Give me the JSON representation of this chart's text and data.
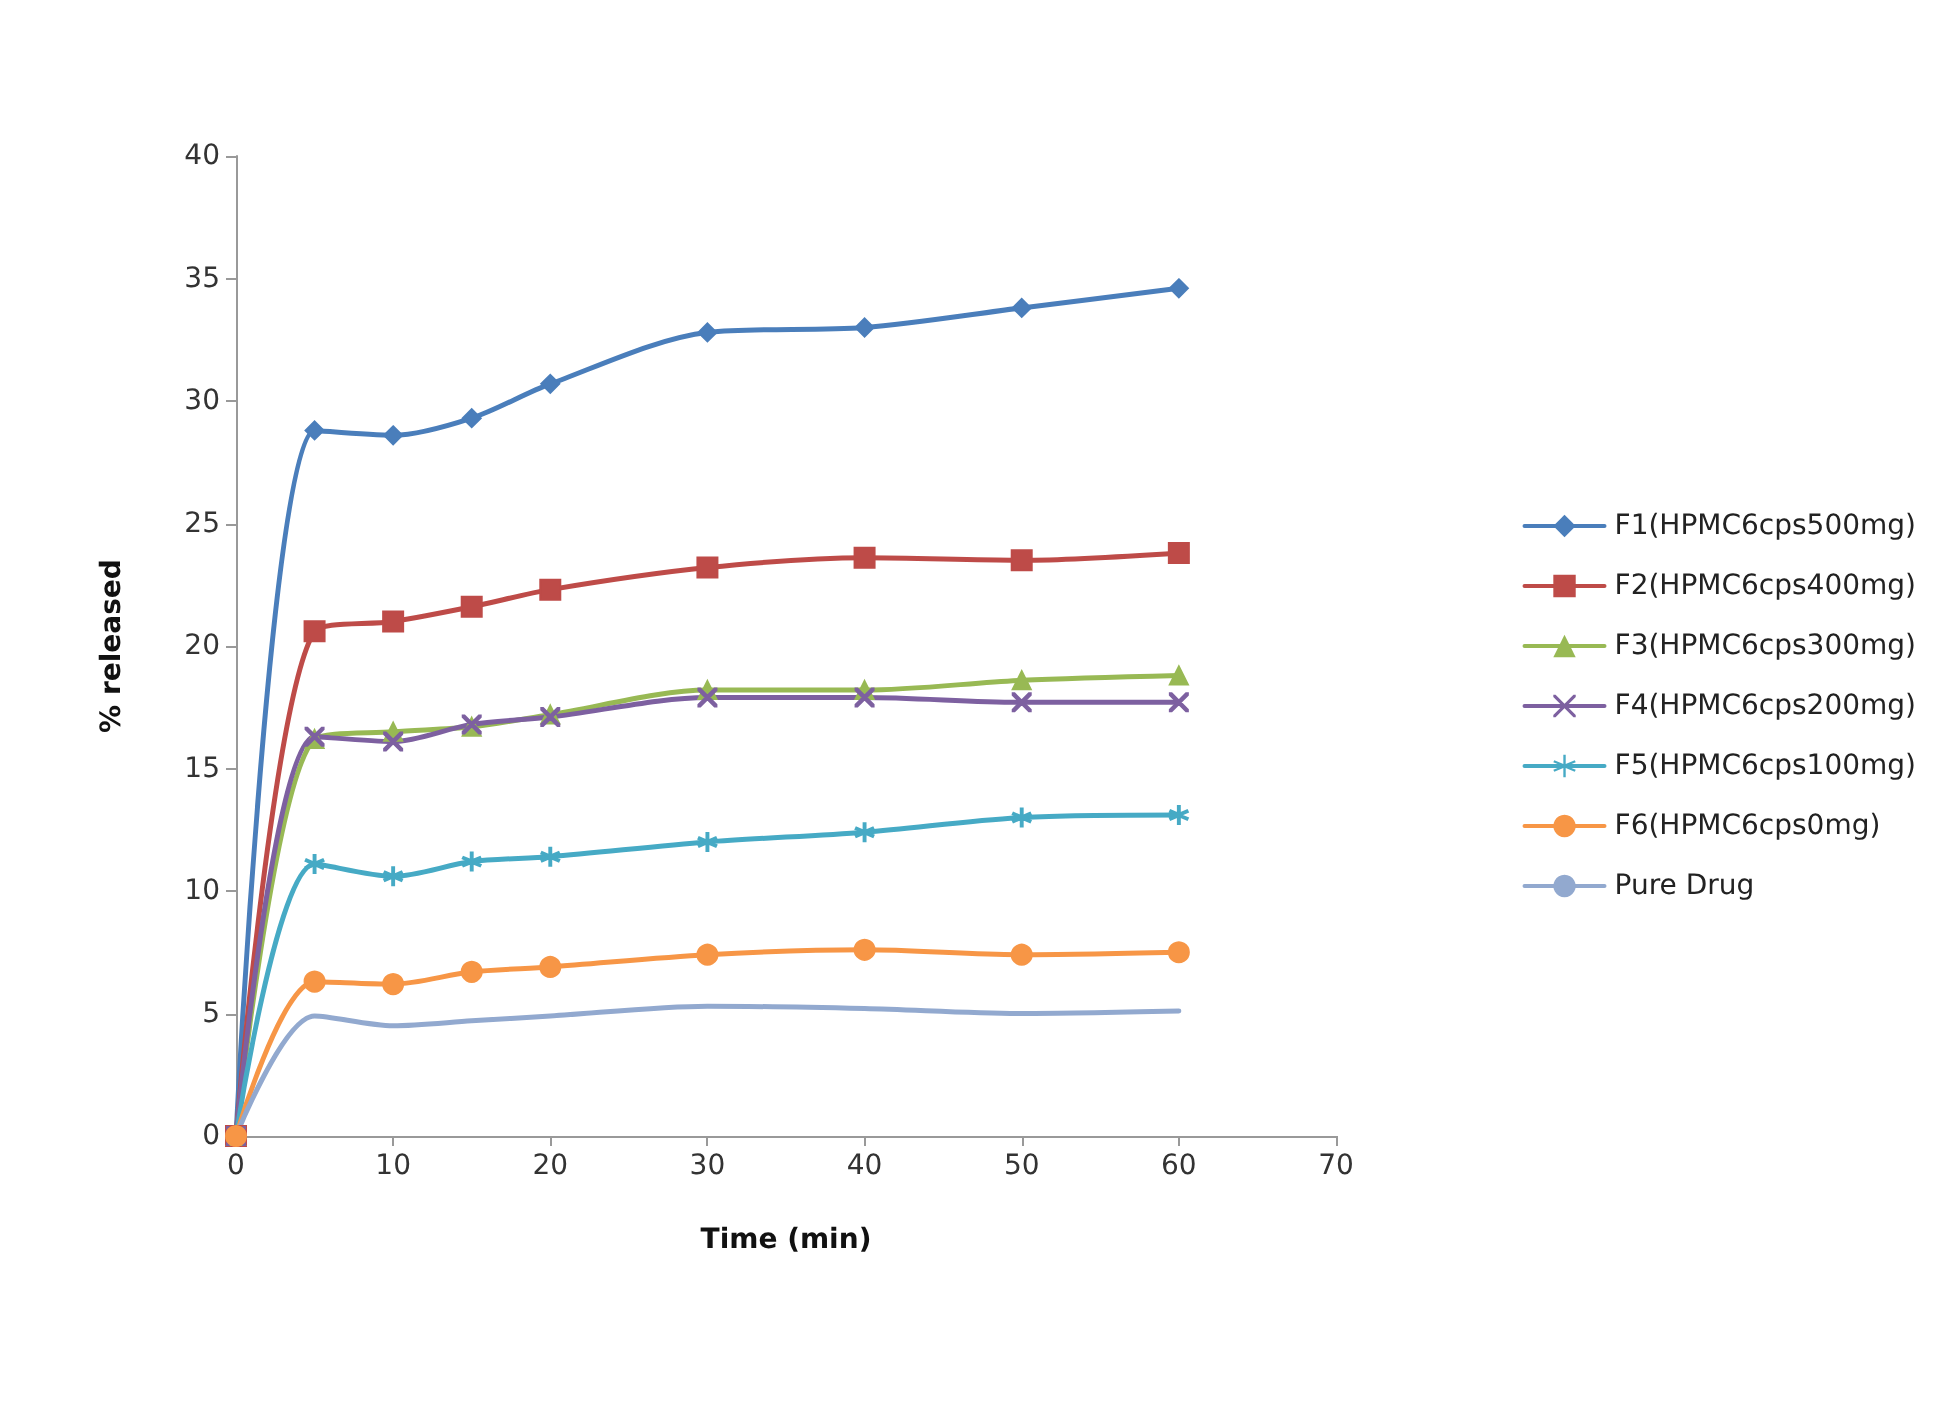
{
  "chart_data": {
    "type": "line",
    "xlabel": "Time (min)",
    "ylabel": "% released",
    "x": [
      0,
      5,
      10,
      15,
      20,
      30,
      40,
      50,
      60
    ],
    "xlim": [
      0,
      70
    ],
    "xticks": [
      0,
      10,
      20,
      30,
      40,
      50,
      60,
      70
    ],
    "ylim": [
      0,
      40
    ],
    "yticks": [
      0,
      5,
      10,
      15,
      20,
      25,
      30,
      35,
      40
    ],
    "grid": false,
    "legend": "right",
    "line_style": "solid",
    "series": [
      {
        "name": "F1(HPMC6cps500mg)",
        "color": "#4a7ebb",
        "marker": "diamond",
        "values": [
          0,
          28.8,
          28.6,
          29.3,
          30.7,
          32.8,
          33.0,
          33.8,
          34.6
        ]
      },
      {
        "name": "F2(HPMC6cps400mg)",
        "color": "#be4b48",
        "marker": "square",
        "values": [
          0,
          20.6,
          21.0,
          21.6,
          22.3,
          23.2,
          23.6,
          23.5,
          23.8
        ]
      },
      {
        "name": "F3(HPMC6cps300mg)",
        "color": "#98b954",
        "marker": "triangle",
        "values": [
          0,
          16.2,
          16.5,
          16.7,
          17.2,
          18.2,
          18.2,
          18.6,
          18.8
        ]
      },
      {
        "name": "F4(HPMC6cps200mg)",
        "color": "#7d60a0",
        "marker": "cross",
        "values": [
          0,
          16.3,
          16.1,
          16.8,
          17.1,
          17.9,
          17.9,
          17.7,
          17.7
        ]
      },
      {
        "name": "F5(HPMC6cps100mg)",
        "color": "#46aac5",
        "marker": "star",
        "values": [
          0,
          11.1,
          10.6,
          11.2,
          11.4,
          12.0,
          12.4,
          13.0,
          13.1
        ]
      },
      {
        "name": "F6(HPMC6cps0mg)",
        "color": "#f79646",
        "marker": "circle",
        "values": [
          0,
          6.3,
          6.2,
          6.7,
          6.9,
          7.4,
          7.6,
          7.4,
          7.5
        ]
      },
      {
        "name": "Pure Drug",
        "color": "#92a9cf",
        "marker": "none",
        "values": [
          0,
          4.9,
          4.5,
          4.7,
          4.9,
          5.3,
          5.2,
          5.0,
          5.1
        ]
      }
    ]
  }
}
